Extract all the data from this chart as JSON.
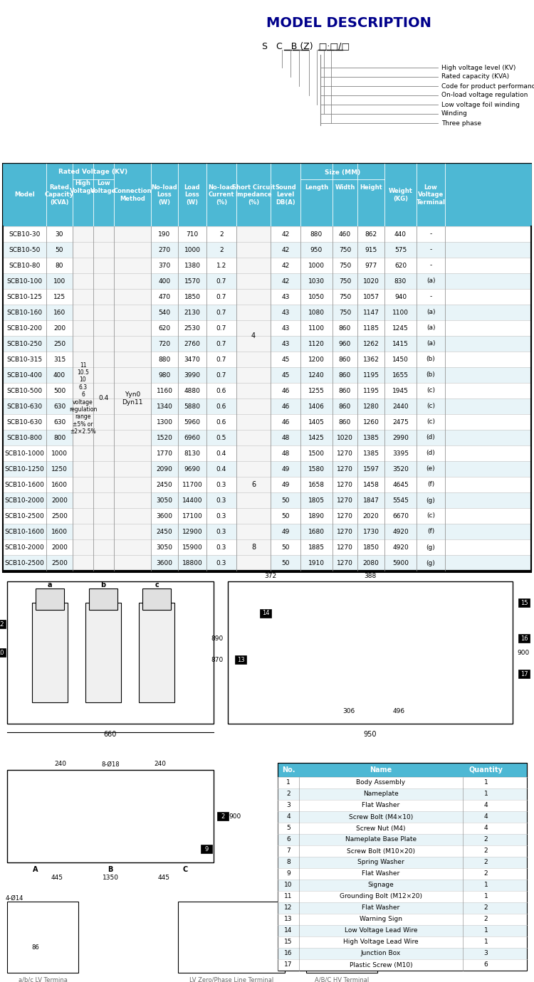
{
  "title": "MODEL DESCRIPTION",
  "model_code": "S  C  B (Z) □·□/□",
  "model_labels": [
    "High voltage level (KV)",
    "Rated capacity (KVA)",
    "Code for product performance",
    "On-load voltage regulation",
    "Low voltage foil winding",
    "Winding",
    "Three phase"
  ],
  "header_bg": "#4db8d4",
  "header_text": "#ffffff",
  "row_bg_even": "#ffffff",
  "row_bg_odd": "#f0f8ff",
  "border_color": "#aaaaaa",
  "table_headers": [
    "Model",
    "Rated\nCapacity\n(KVA)",
    "High\nVoltage",
    "Low\nVoltage",
    "Connection\nMethod",
    "No-load\nLoss\n(W)",
    "Load\nLoss\n(W)",
    "No-load\nCurrent\n(%)",
    "Short Circuit\nImpedance\n(%)",
    "Sound\nLevel\nDB(A)",
    "Length",
    "Width",
    "Height",
    "Weight\n(KG)",
    "Low\nVoltage\nTerminal"
  ],
  "subheader1": "Rated Voltage (KV)",
  "subheader2": "Size (MM)",
  "table_data": [
    [
      "SCB10-30",
      30,
      "",
      "",
      "",
      190,
      710,
      2,
      "",
      42,
      880,
      460,
      862,
      440,
      "-"
    ],
    [
      "SCB10-50",
      50,
      "",
      "",
      "",
      270,
      1000,
      2,
      "",
      42,
      950,
      750,
      915,
      575,
      "-"
    ],
    [
      "SCB10-80",
      80,
      "",
      "",
      "",
      370,
      1380,
      1.2,
      "",
      42,
      1000,
      750,
      977,
      620,
      "-"
    ],
    [
      "SCB10-100",
      100,
      "",
      "",
      "",
      400,
      1570,
      0.7,
      "",
      42,
      1030,
      750,
      1020,
      830,
      "(a)"
    ],
    [
      "SCB10-125",
      125,
      "",
      "",
      "",
      470,
      1850,
      0.7,
      "",
      43,
      1050,
      750,
      1057,
      940,
      "-"
    ],
    [
      "SCB10-160",
      160,
      "",
      "",
      "",
      540,
      2130,
      0.7,
      "",
      43,
      1080,
      750,
      1147,
      1100,
      "(a)"
    ],
    [
      "SCB10-200",
      200,
      "",
      "",
      "",
      620,
      2530,
      0.7,
      "",
      43,
      1100,
      860,
      1185,
      1245,
      "(a)"
    ],
    [
      "SCB10-250",
      250,
      "",
      "",
      "",
      720,
      2760,
      0.7,
      "",
      43,
      1120,
      960,
      1262,
      1415,
      "(a)"
    ],
    [
      "SCB10-315",
      315,
      "",
      "",
      "",
      880,
      3470,
      0.7,
      "",
      45,
      1200,
      860,
      1362,
      1450,
      "(b)"
    ],
    [
      "SCB10-400",
      400,
      "",
      "",
      "",
      980,
      3990,
      0.7,
      "",
      45,
      1240,
      860,
      1195,
      1655,
      "(b)"
    ],
    [
      "SCB10-500",
      500,
      "",
      "",
      "",
      1160,
      4880,
      0.6,
      "",
      46,
      1255,
      860,
      1195,
      1945,
      "(c)"
    ],
    [
      "SCB10-630",
      630,
      "",
      "",
      "",
      1340,
      5880,
      0.6,
      "",
      46,
      1406,
      860,
      1280,
      2440,
      "(c)"
    ],
    [
      "SCB10-630",
      630,
      "",
      "",
      "",
      1300,
      5960,
      0.6,
      "",
      46,
      1405,
      860,
      1260,
      2475,
      "(c)"
    ],
    [
      "SCB10-800",
      800,
      "",
      "",
      "",
      1520,
      6960,
      0.5,
      "",
      48,
      1425,
      1020,
      1385,
      2990,
      "(d)"
    ],
    [
      "SCB10-1000",
      1000,
      "",
      "",
      "",
      1770,
      8130,
      0.4,
      "",
      48,
      1500,
      1270,
      1385,
      3395,
      "(d)"
    ],
    [
      "SCB10-1250",
      1250,
      "",
      "",
      "",
      2090,
      9690,
      0.4,
      "",
      49,
      1580,
      1270,
      1597,
      3520,
      "(e)"
    ],
    [
      "SCB10-1600",
      1600,
      "",
      "",
      "",
      2450,
      11700,
      0.3,
      "",
      49,
      1658,
      1270,
      1458,
      4645,
      "(f)"
    ],
    [
      "SCB10-2000",
      2000,
      "",
      "",
      "",
      3050,
      14400,
      0.3,
      "",
      50,
      1805,
      1270,
      1847,
      5545,
      "(g)"
    ],
    [
      "SCB10-2500",
      2500,
      "",
      "",
      "",
      3600,
      17100,
      0.3,
      "",
      50,
      1890,
      1270,
      2020,
      6670,
      "(c)"
    ],
    [
      "SCB10-1600",
      1600,
      "",
      "",
      "",
      2450,
      12900,
      0.3,
      "",
      49,
      1680,
      1270,
      1730,
      4920,
      "(f)"
    ],
    [
      "SCB10-2000",
      2000,
      "",
      "",
      "",
      3050,
      15900,
      0.3,
      "",
      50,
      1885,
      1270,
      1850,
      4920,
      "(g)"
    ],
    [
      "SCB10-2500",
      2500,
      "",
      "",
      "",
      3600,
      18800,
      0.3,
      "",
      50,
      1910,
      1270,
      2080,
      5900,
      "(g)"
    ]
  ],
  "parts_table": {
    "headers": [
      "No.",
      "Name",
      "Quantity"
    ],
    "rows": [
      [
        1,
        "Body Assembly",
        1
      ],
      [
        2,
        "Nameplate",
        1
      ],
      [
        3,
        "Flat Washer",
        4
      ],
      [
        4,
        "Screw Bolt (M4×10)",
        4
      ],
      [
        5,
        "Screw Nut (M4)",
        4
      ],
      [
        6,
        "Nameplate Base Plate",
        2
      ],
      [
        7,
        "Screw Bolt (M10×20)",
        2
      ],
      [
        8,
        "Spring Washer",
        2
      ],
      [
        9,
        "Flat Washer",
        2
      ],
      [
        10,
        "Signage",
        1
      ],
      [
        11,
        "Grounding Bolt (M12×20)",
        1
      ],
      [
        12,
        "Flat Washer",
        2
      ],
      [
        13,
        "Warning Sign",
        2
      ],
      [
        14,
        "Low Voltage Lead Wire",
        1
      ],
      [
        15,
        "High Voltage Lead Wire",
        1
      ],
      [
        16,
        "Junction Box",
        3
      ],
      [
        17,
        "Plastic Screw (M10)",
        6
      ]
    ]
  }
}
